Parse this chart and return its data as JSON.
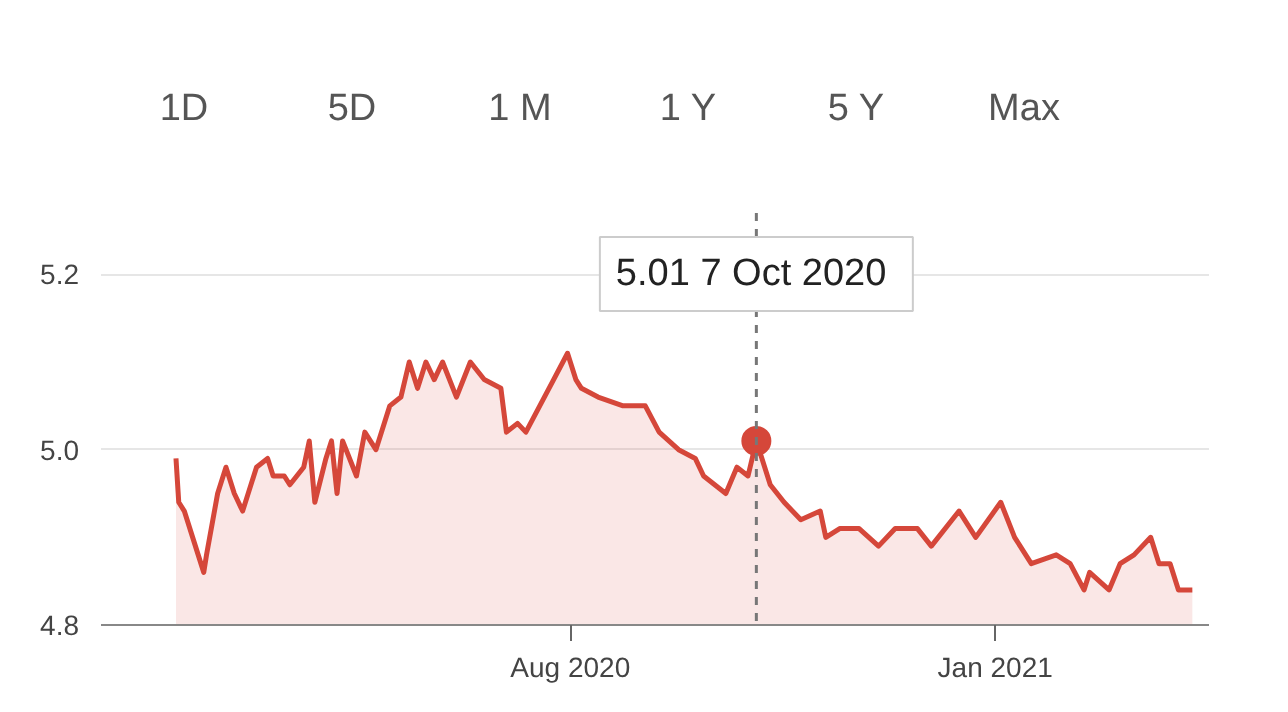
{
  "chart_data": {
    "type": "area",
    "x": [
      "2020-03-12",
      "2020-03-13",
      "2020-03-15",
      "2020-03-20",
      "2020-03-22",
      "2020-03-23",
      "2020-03-27",
      "2020-03-30",
      "2020-04-02",
      "2020-04-05",
      "2020-04-10",
      "2020-04-14",
      "2020-04-16",
      "2020-04-20",
      "2020-04-22",
      "2020-04-27",
      "2020-04-29",
      "2020-05-01",
      "2020-05-05",
      "2020-05-07",
      "2020-05-09",
      "2020-05-11",
      "2020-05-16",
      "2020-05-19",
      "2020-05-23",
      "2020-05-28",
      "2020-06-01",
      "2020-06-04",
      "2020-06-07",
      "2020-06-10",
      "2020-06-13",
      "2020-06-16",
      "2020-06-21",
      "2020-06-26",
      "2020-07-01",
      "2020-07-07",
      "2020-07-09",
      "2020-07-13",
      "2020-07-16",
      "2020-07-21",
      "2020-07-26",
      "2020-07-31",
      "2020-08-03",
      "2020-08-05",
      "2020-08-11",
      "2020-08-20",
      "2020-08-28",
      "2020-09-02",
      "2020-09-09",
      "2020-09-15",
      "2020-09-18",
      "2020-09-26",
      "2020-09-30",
      "2020-10-04",
      "2020-10-07",
      "2020-10-12",
      "2020-10-17",
      "2020-10-23",
      "2020-10-30",
      "2020-11-01",
      "2020-11-06",
      "2020-11-13",
      "2020-11-20",
      "2020-11-26",
      "2020-12-04",
      "2020-12-09",
      "2020-12-19",
      "2020-12-25",
      "2021-01-03",
      "2021-01-08",
      "2021-01-14",
      "2021-01-23",
      "2021-01-28",
      "2021-02-02",
      "2021-02-04",
      "2021-02-11",
      "2021-02-15",
      "2021-02-20",
      "2021-02-26",
      "2021-03-01",
      "2021-03-05",
      "2021-03-08",
      "2021-03-11",
      "2021-03-13"
    ],
    "series": [
      {
        "color": "#d5473a",
        "values": [
          4.99,
          4.94,
          4.93,
          4.88,
          4.86,
          4.88,
          4.95,
          4.98,
          4.95,
          4.93,
          4.98,
          4.99,
          4.97,
          4.97,
          4.96,
          4.98,
          5.01,
          4.94,
          4.99,
          5.01,
          4.95,
          5.01,
          4.97,
          5.02,
          5.0,
          5.05,
          5.06,
          5.1,
          5.07,
          5.1,
          5.08,
          5.1,
          5.06,
          5.1,
          5.08,
          5.07,
          5.02,
          5.03,
          5.02,
          5.05,
          5.08,
          5.11,
          5.08,
          5.07,
          5.06,
          5.05,
          5.05,
          5.02,
          5.0,
          4.99,
          4.97,
          4.95,
          4.98,
          4.97,
          5.01,
          4.96,
          4.94,
          4.92,
          4.93,
          4.9,
          4.91,
          4.91,
          4.89,
          4.91,
          4.91,
          4.89,
          4.93,
          4.9,
          4.94,
          4.9,
          4.87,
          4.88,
          4.87,
          4.84,
          4.86,
          4.84,
          4.87,
          4.88,
          4.9,
          4.87,
          4.87,
          4.84,
          4.84,
          4.84
        ]
      }
    ],
    "xlim": [
      "2020-02-14",
      "2021-03-19"
    ],
    "xticks": [
      {
        "value": "2020-08-01",
        "label": "Aug 2020"
      },
      {
        "value": "2021-01-01",
        "label": "Jan 2021"
      }
    ],
    "ylim": [
      4.8,
      5.27
    ],
    "yticks": [
      4.8,
      {
        "value": 5.0,
        "label": "5.0"
      },
      5.2
    ],
    "grid": "y",
    "ref_lines": [
      {
        "axis": "x",
        "value": "2020-10-07",
        "label": "5.01  7 Oct 2020",
        "line_style": "dashed",
        "color": "#777777"
      }
    ],
    "annotations": [
      "1D",
      "5D",
      "1 M",
      "1 Y",
      "5 Y",
      "Max"
    ]
  }
}
